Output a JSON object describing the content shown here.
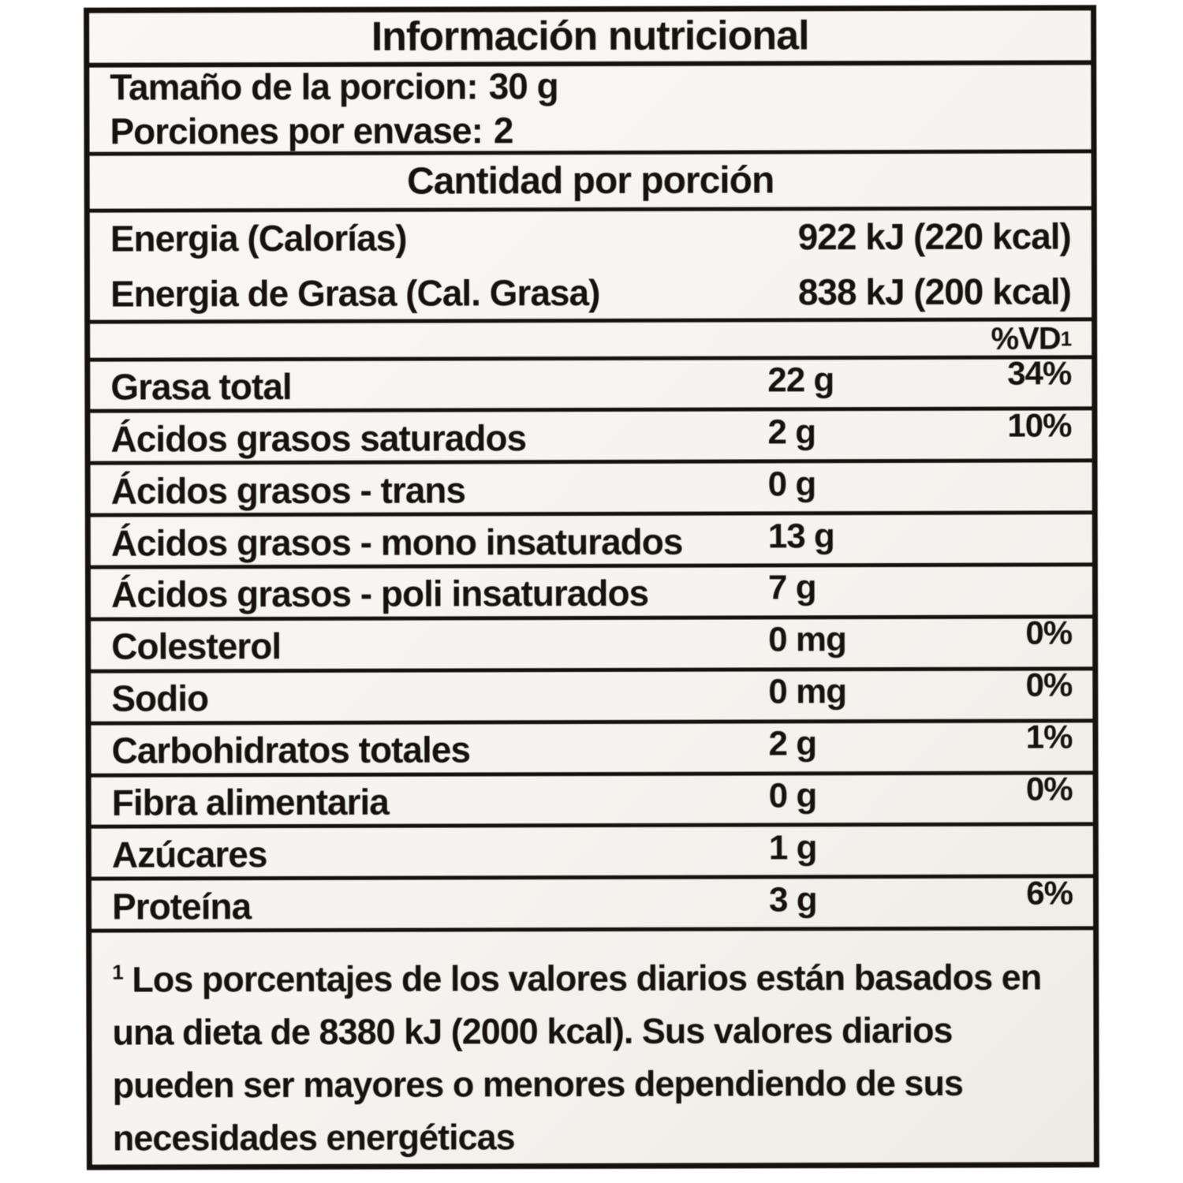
{
  "label": {
    "title": "Información nutricional",
    "serving": {
      "size_label": "Tamaño de la porcion:",
      "size_value": "30 g",
      "per_container_label": "Porciones por envase:",
      "per_container_value": "2"
    },
    "section_header": "Cantidad por porción",
    "energy_rows": [
      {
        "name": "Energia (Calorías)",
        "value": "922 kJ (220 kcal)"
      },
      {
        "name": "Energia de Grasa (Cal. Grasa)",
        "value": "838 kJ (200 kcal)"
      }
    ],
    "dv_header": {
      "text": "%VD",
      "sup": "1"
    },
    "nutrient_rows": [
      {
        "name": "Grasa total",
        "amount": "22 g",
        "dv": "34%"
      },
      {
        "name": "Ácidos grasos saturados",
        "amount": "2 g",
        "dv": "10%"
      },
      {
        "name": "Ácidos grasos - trans",
        "amount": "0 g",
        "dv": ""
      },
      {
        "name": "Ácidos grasos - mono insaturados",
        "amount": "13 g",
        "dv": ""
      },
      {
        "name": "Ácidos grasos - poli insaturados",
        "amount": "7 g",
        "dv": ""
      },
      {
        "name": "Colesterol",
        "amount": "0 mg",
        "dv": "0%"
      },
      {
        "name": "Sodio",
        "amount": "0 mg",
        "dv": "0%"
      },
      {
        "name": "Carbohidratos totales",
        "amount": "2 g",
        "dv": "1%"
      },
      {
        "name": "Fibra alimentaria",
        "amount": "0 g",
        "dv": "0%"
      },
      {
        "name": "Azúcares",
        "amount": "1 g",
        "dv": ""
      },
      {
        "name": "Proteína",
        "amount": "3 g",
        "dv": "6%"
      }
    ],
    "footnote": {
      "sup": "1",
      "text": "Los porcentajes de los valores diarios están basados en una dieta de 8380 kJ (2000 kcal). Sus valores diarios pueden ser mayores o menores dependiendo de sus necesidades energéticas"
    }
  },
  "colors": {
    "ink": "#191410",
    "paper": "#f4f2ee"
  }
}
